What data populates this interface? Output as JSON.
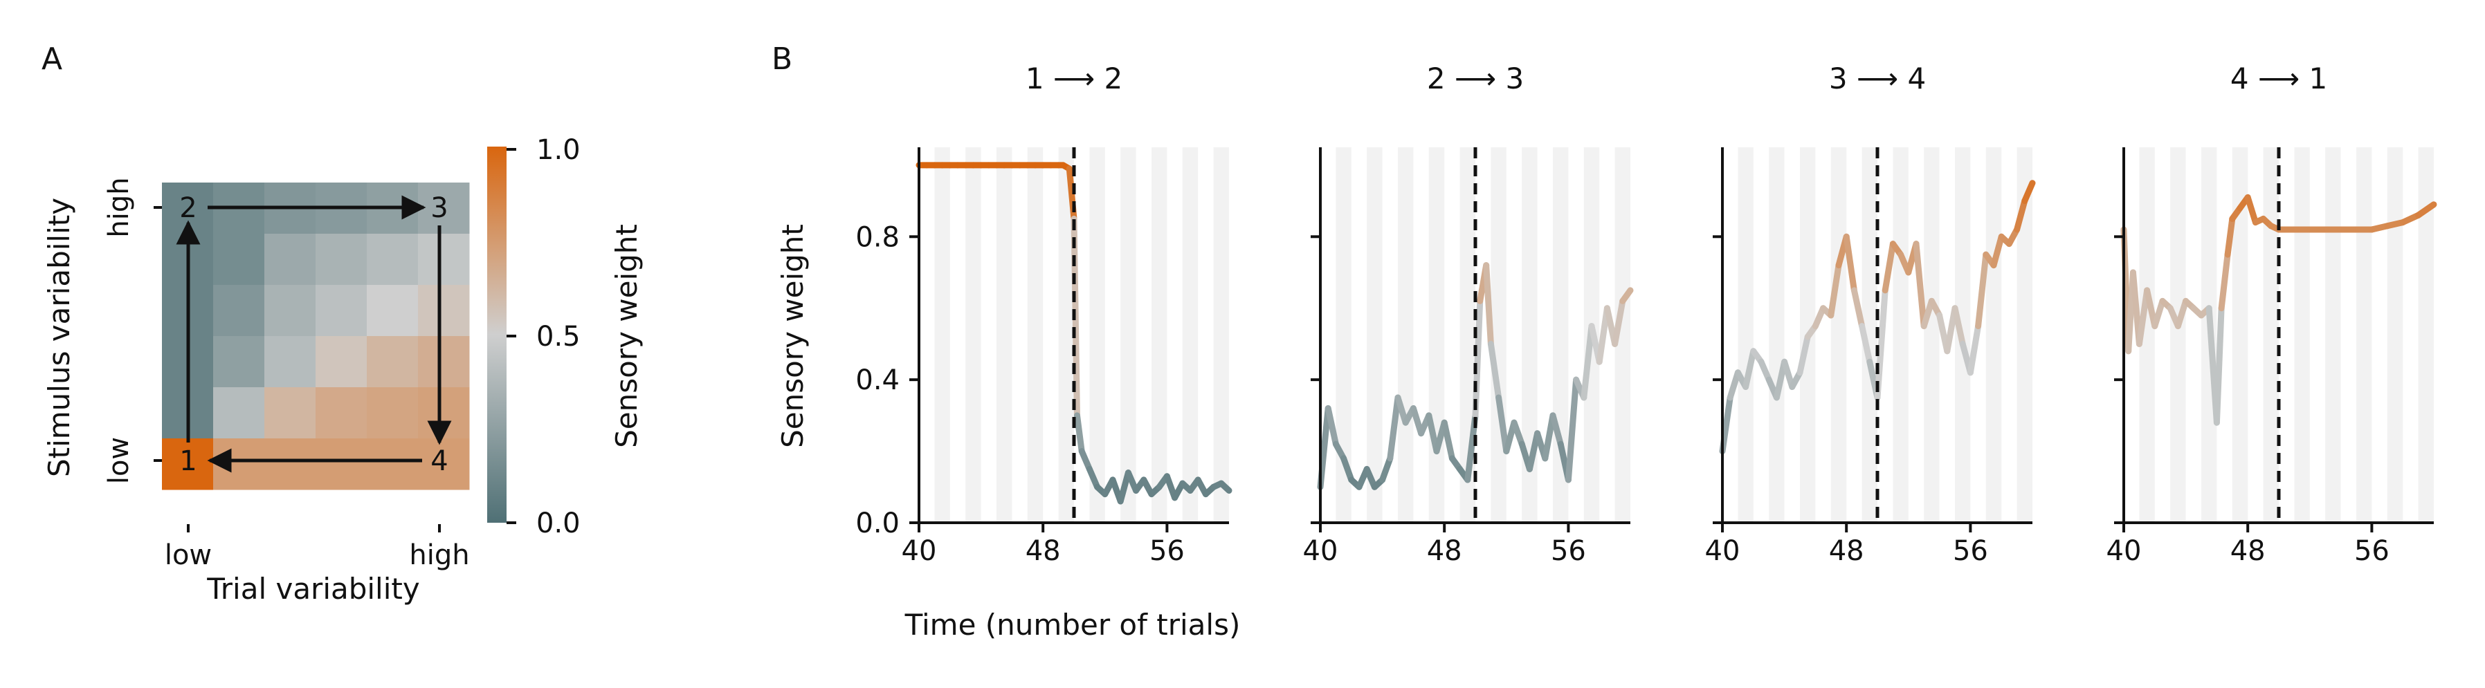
{
  "panel_labels": {
    "a": "A",
    "b": "B"
  },
  "colors": {
    "orange": "#d9660f",
    "mid": "#cfcfcf",
    "slate": "#4f7075",
    "band": "#f2f2f2",
    "axis": "#111111"
  },
  "chart_data": [
    {
      "type": "heatmap",
      "xlabel": "Trial variability",
      "ylabel": "Stimulus variability",
      "xtick_labels": [
        "low",
        "high"
      ],
      "ytick_labels": [
        "low",
        "high"
      ],
      "grid_rows_top_to_bottom": [
        [
          0.1,
          0.15,
          0.2,
          0.22,
          0.25,
          0.3
        ],
        [
          0.1,
          0.15,
          0.3,
          0.35,
          0.4,
          0.45
        ],
        [
          0.1,
          0.2,
          0.35,
          0.42,
          0.5,
          0.55
        ],
        [
          0.1,
          0.25,
          0.4,
          0.55,
          0.62,
          0.66
        ],
        [
          0.1,
          0.4,
          0.62,
          0.68,
          0.7,
          0.72
        ],
        [
          1.0,
          0.74,
          0.74,
          0.74,
          0.74,
          0.74
        ]
      ],
      "corner_labels": [
        "1",
        "2",
        "3",
        "4"
      ],
      "transitions": [
        [
          "1",
          "2"
        ],
        [
          "2",
          "3"
        ],
        [
          "3",
          "4"
        ],
        [
          "4",
          "1"
        ]
      ],
      "colorbar": {
        "label": "Sensory weight",
        "ticks": [
          "0.0",
          "0.5",
          "1.0"
        ],
        "range": [
          0,
          1
        ]
      }
    },
    {
      "type": "line",
      "ylabel": "Sensory weight",
      "xlabel": "Time (number of trials)",
      "xlim": [
        40,
        60
      ],
      "ylim": [
        0,
        1.05
      ],
      "xticks": [
        "40",
        "48",
        "56"
      ],
      "yticks": [
        "0.0",
        "0.4",
        "0.8"
      ],
      "switch_at": 50,
      "panels": [
        {
          "title": "1 ⟶ 2",
          "x": [
            40,
            40.5,
            41,
            41.5,
            42,
            42.5,
            43,
            43.5,
            44,
            44.5,
            45,
            45.5,
            46,
            46.5,
            47,
            47.5,
            48,
            48.5,
            49,
            49.3,
            49.7,
            50,
            50.2,
            50.5,
            51,
            51.5,
            52,
            52.5,
            53,
            53.5,
            54,
            54.5,
            55,
            55.5,
            56,
            56.5,
            57,
            57.5,
            58,
            58.5,
            59,
            59.5,
            60
          ],
          "y": [
            1.0,
            1.0,
            1.0,
            1.0,
            1.0,
            1.0,
            1.0,
            1.0,
            1.0,
            1.0,
            1.0,
            1.0,
            1.0,
            1.0,
            1.0,
            1.0,
            1.0,
            1.0,
            1.0,
            1.0,
            0.99,
            0.85,
            0.3,
            0.2,
            0.15,
            0.1,
            0.08,
            0.12,
            0.06,
            0.14,
            0.09,
            0.12,
            0.08,
            0.1,
            0.13,
            0.07,
            0.11,
            0.09,
            0.12,
            0.08,
            0.1,
            0.11,
            0.09
          ]
        },
        {
          "title": "2 ⟶ 3",
          "x": [
            40,
            40.5,
            41,
            41.5,
            42,
            42.5,
            43,
            43.5,
            44,
            44.5,
            45,
            45.5,
            46,
            46.5,
            47,
            47.5,
            48,
            48.5,
            49,
            49.5,
            50,
            50.3,
            50.7,
            51,
            51.5,
            52,
            52.5,
            53,
            53.5,
            54,
            54.5,
            55,
            55.5,
            56,
            56.5,
            57,
            57.5,
            58,
            58.5,
            59,
            59.5,
            60
          ],
          "y": [
            0.1,
            0.32,
            0.22,
            0.18,
            0.12,
            0.1,
            0.15,
            0.1,
            0.12,
            0.18,
            0.35,
            0.28,
            0.32,
            0.25,
            0.3,
            0.2,
            0.28,
            0.18,
            0.15,
            0.12,
            0.3,
            0.62,
            0.72,
            0.5,
            0.35,
            0.2,
            0.28,
            0.22,
            0.15,
            0.25,
            0.18,
            0.3,
            0.22,
            0.12,
            0.4,
            0.35,
            0.55,
            0.45,
            0.6,
            0.5,
            0.62,
            0.65
          ]
        },
        {
          "title": "3 ⟶ 4",
          "x": [
            40,
            40.5,
            41,
            41.5,
            42,
            42.5,
            43,
            43.5,
            44,
            44.5,
            45,
            45.5,
            46,
            46.5,
            47,
            47.5,
            48,
            48.5,
            49,
            49.5,
            50,
            50.5,
            51,
            51.5,
            52,
            52.5,
            53,
            53.5,
            54,
            54.5,
            55,
            55.5,
            56,
            56.5,
            57,
            57.5,
            58,
            58.5,
            59,
            59.5,
            60
          ],
          "y": [
            0.2,
            0.35,
            0.42,
            0.38,
            0.48,
            0.45,
            0.4,
            0.35,
            0.45,
            0.38,
            0.42,
            0.52,
            0.55,
            0.6,
            0.58,
            0.72,
            0.8,
            0.65,
            0.55,
            0.45,
            0.35,
            0.65,
            0.78,
            0.75,
            0.7,
            0.78,
            0.55,
            0.62,
            0.58,
            0.48,
            0.6,
            0.5,
            0.42,
            0.55,
            0.75,
            0.72,
            0.8,
            0.78,
            0.82,
            0.9,
            0.95
          ]
        },
        {
          "title": "4 ⟶ 1",
          "x": [
            40,
            40.3,
            40.6,
            41,
            41.5,
            42,
            42.5,
            43,
            43.5,
            44,
            44.5,
            45,
            45.5,
            46,
            46.3,
            46.7,
            47,
            47.5,
            48,
            48.5,
            49,
            49.5,
            50,
            51,
            52,
            53,
            54,
            55,
            56,
            57,
            58,
            59,
            60
          ],
          "y": [
            0.82,
            0.48,
            0.7,
            0.5,
            0.65,
            0.55,
            0.62,
            0.6,
            0.55,
            0.62,
            0.6,
            0.58,
            0.6,
            0.28,
            0.6,
            0.75,
            0.85,
            0.88,
            0.91,
            0.84,
            0.85,
            0.83,
            0.82,
            0.82,
            0.82,
            0.82,
            0.82,
            0.82,
            0.82,
            0.83,
            0.84,
            0.86,
            0.89
          ]
        }
      ]
    }
  ]
}
